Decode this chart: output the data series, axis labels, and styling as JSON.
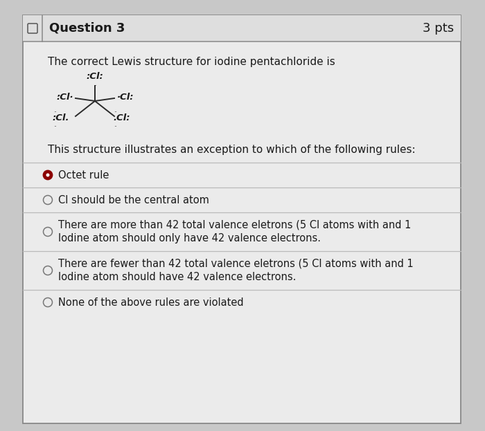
{
  "background_color": "#c8c8c8",
  "card_color": "#ebebeb",
  "header_color": "#dedede",
  "outer_border_color": "#888888",
  "inner_border_color": "#bbbbbb",
  "title": "Question 3",
  "points": "3 pts",
  "question_text": "The correct Lewis structure for iodine pentachloride is",
  "structure_note": "This structure illustrates an exception to which of the following rules:",
  "options": [
    "Octet rule",
    "Cl should be the central atom",
    "There are more than 42 total valence eletrons (5 Cl atoms with and 1\nIodine atom should only have 42 valence electrons.",
    "There are fewer than 42 total valence eletrons (5 Cl atoms with and 1\nIodine atom should have 42 valence electrons.",
    "None of the above rules are violated"
  ],
  "selected_option": 0,
  "selected_color": "#8B0000",
  "unselected_color": "#888888",
  "text_color": "#1a1a1a",
  "title_fontsize": 13,
  "body_fontsize": 11,
  "option_fontsize": 10.5
}
